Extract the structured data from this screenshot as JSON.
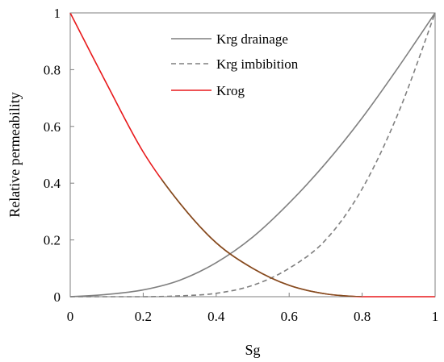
{
  "chart_data": {
    "type": "line",
    "xlabel": "Sg",
    "ylabel": "Relative permeability",
    "xlim": [
      0,
      1
    ],
    "ylim": [
      0,
      1
    ],
    "x_ticks": [
      "0",
      "0.2",
      "0.4",
      "0.6",
      "0.8",
      "1"
    ],
    "y_ticks": [
      "0",
      "0.2",
      "0.4",
      "0.6",
      "0.8",
      "1"
    ],
    "grid": false,
    "legend_position": "top-right",
    "series": [
      {
        "name": "Krg drainage",
        "color": "#7f7f7f",
        "dash": "solid",
        "x": [
          0,
          0.1,
          0.2,
          0.3,
          0.4,
          0.5,
          0.6,
          0.7,
          0.8,
          0.9,
          1.0
        ],
        "y": [
          0,
          0.008,
          0.024,
          0.058,
          0.12,
          0.21,
          0.33,
          0.47,
          0.63,
          0.81,
          1.0
        ]
      },
      {
        "name": "Krg imbibition",
        "color": "#7f7f7f",
        "dash": "dashed",
        "x": [
          0,
          0.2,
          0.3,
          0.4,
          0.5,
          0.6,
          0.7,
          0.8,
          0.9,
          1.0
        ],
        "y": [
          0,
          0,
          0.003,
          0.012,
          0.04,
          0.1,
          0.2,
          0.38,
          0.65,
          1.0
        ]
      },
      {
        "name": "Krog",
        "color": "#e8191b",
        "dash": "solid",
        "x": [
          0,
          0.1,
          0.2,
          0.3,
          0.4,
          0.5,
          0.6,
          0.7,
          0.8,
          0.9,
          1.0
        ],
        "y": [
          1.0,
          0.75,
          0.51,
          0.33,
          0.19,
          0.1,
          0.04,
          0.01,
          0.0,
          0.0,
          0.0
        ]
      }
    ],
    "overlap": {
      "note_color": "#7f4f1f",
      "x_start": 0.25,
      "x_end": 0.8
    }
  }
}
